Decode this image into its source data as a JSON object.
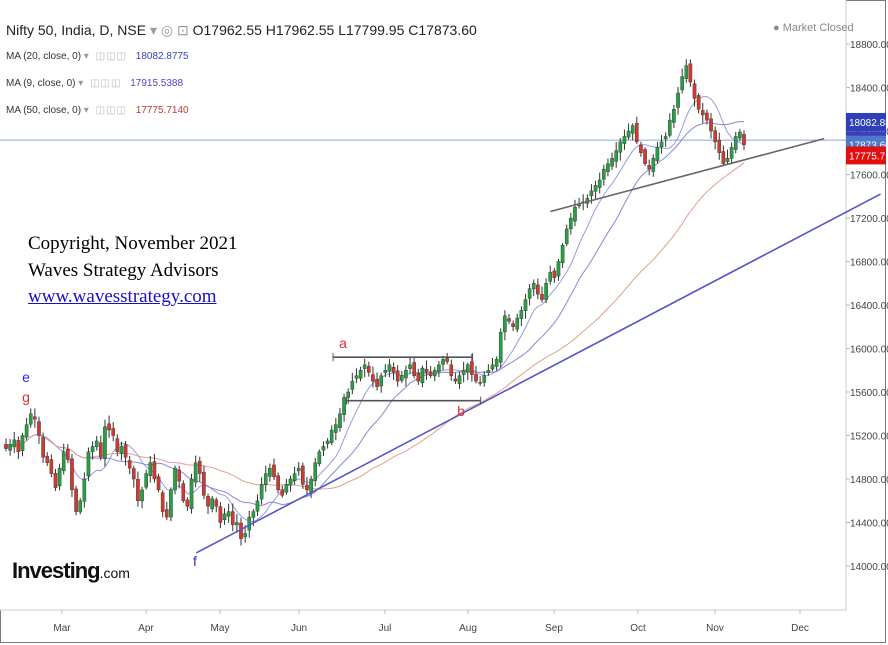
{
  "header": {
    "symbol": "Nifty 50, India, D, NSE",
    "open": "O17962.55",
    "high": "H17962.55",
    "low": "L17799.95",
    "close": "C17873.60",
    "market_status": "Market Closed"
  },
  "indicators": [
    {
      "label": "MA (20, close, 0)",
      "value": "18082.8775",
      "color": "#3b3fc4"
    },
    {
      "label": "MA (9, close, 0)",
      "value": "17915.5388",
      "color": "#5a3fc0"
    },
    {
      "label": "MA (50, close, 0)",
      "value": "17775.7140",
      "color": "#c0392b"
    }
  ],
  "watermark": {
    "line1": "Copyright, November 2021",
    "line2": "Waves Strategy Advisors",
    "link": "www.wavesstrategy.com"
  },
  "logo": {
    "brand": "Investing",
    "suffix": ".com"
  },
  "chart_data": {
    "type": "candlestick",
    "x_ticks": [
      "Mar",
      "Apr",
      "May",
      "Jun",
      "Jul",
      "Aug",
      "Sep",
      "Oct",
      "Nov",
      "Dec"
    ],
    "y_ticks": [
      14000,
      14400,
      14800,
      15200,
      15600,
      16000,
      16400,
      16800,
      17200,
      17600,
      18000,
      18400,
      18800
    ],
    "y_tick_labels": [
      "14000.00",
      "14400.00",
      "14800.00",
      "15200.00",
      "15600.00",
      "16000.00",
      "16400.00",
      "16800.00",
      "17200.00",
      "17600.00",
      "18000.00",
      "18400.00",
      "18800.00"
    ],
    "ylim": [
      13700,
      18900
    ],
    "price_badges": [
      {
        "label": "18082.88",
        "value": 18082.88,
        "bg": "#2f3fb8"
      },
      {
        "label": "17915.54",
        "value": 17915.54,
        "bg": "#3a3fbd"
      },
      {
        "label": "17873.60",
        "value": 17873.6,
        "bg": "#4f78c9"
      },
      {
        "label": "17775.71",
        "value": 17775.71,
        "bg": "#e01010"
      }
    ],
    "wave_labels": [
      {
        "text": "e",
        "color": "#2b2bd8"
      },
      {
        "text": "g",
        "color": "#d83030"
      },
      {
        "text": "a",
        "color": "#d83030"
      },
      {
        "text": "b",
        "color": "#d83030"
      },
      {
        "text": "f",
        "color": "#2b2bd8"
      }
    ],
    "trendlines": [
      {
        "name": "long-term-support",
        "from": [
          "2021-04-20",
          14120
        ],
        "to": [
          "2021-12-31",
          17420
        ],
        "color": "#5555c8"
      },
      {
        "name": "rising-support",
        "from": [
          "2021-08-30",
          17260
        ],
        "to": [
          "2021-12-10",
          17930
        ],
        "color": "#666666"
      },
      {
        "name": "range-top",
        "from": [
          "2021-06-10",
          15920
        ],
        "to": [
          "2021-08-01",
          15920
        ],
        "color": "#555555"
      },
      {
        "name": "range-bottom",
        "from": [
          "2021-06-15",
          15520
        ],
        "to": [
          "2021-08-04",
          15520
        ],
        "color": "#555555"
      }
    ],
    "last_price_line": 17915.54,
    "closes": [
      15080,
      15120,
      15160,
      15050,
      15200,
      15300,
      15400,
      15350,
      15200,
      15000,
      14950,
      14850,
      14720,
      14900,
      15050,
      14980,
      14700,
      14500,
      14600,
      14800,
      15050,
      15100,
      15150,
      15000,
      15280,
      15250,
      15200,
      15050,
      15100,
      15000,
      14900,
      14800,
      14600,
      14700,
      14850,
      14950,
      14800,
      14700,
      14500,
      14450,
      14700,
      14900,
      14780,
      14600,
      14550,
      14800,
      14950,
      14850,
      14650,
      14550,
      14620,
      14550,
      14400,
      14480,
      14500,
      14380,
      14400,
      14250,
      14300,
      14450,
      14500,
      14600,
      14750,
      14850,
      14900,
      14820,
      14700,
      14650,
      14750,
      14800,
      14850,
      14900,
      14750,
      14700,
      14800,
      14950,
      15050,
      15100,
      15150,
      15250,
      15300,
      15400,
      15550,
      15600,
      15700,
      15750,
      15800,
      15850,
      15780,
      15700,
      15650,
      15750,
      15800,
      15850,
      15780,
      15700,
      15750,
      15800,
      15850,
      15750,
      15700,
      15820,
      15780,
      15750,
      15800,
      15850,
      15900,
      15880,
      15750,
      15700,
      15750,
      15800,
      15850,
      15760,
      15700,
      15680,
      15750,
      15800,
      15850,
      15900,
      16150,
      16300,
      16250,
      16200,
      16280,
      16350,
      16450,
      16550,
      16600,
      16500,
      16450,
      16600,
      16700,
      16650,
      16800,
      16950,
      17100,
      17200,
      17300,
      17320,
      17350,
      17380,
      17450,
      17500,
      17550,
      17650,
      17700,
      17750,
      17820,
      17900,
      17950,
      18000,
      18050,
      17900,
      17800,
      17700,
      17650,
      17750,
      17850,
      17900,
      17950,
      18100,
      18200,
      18350,
      18500,
      18600,
      18450,
      18300,
      18200,
      18150,
      18100,
      18000,
      17900,
      17800,
      17700,
      17750,
      17850,
      17950,
      17990,
      17873.6
    ]
  }
}
